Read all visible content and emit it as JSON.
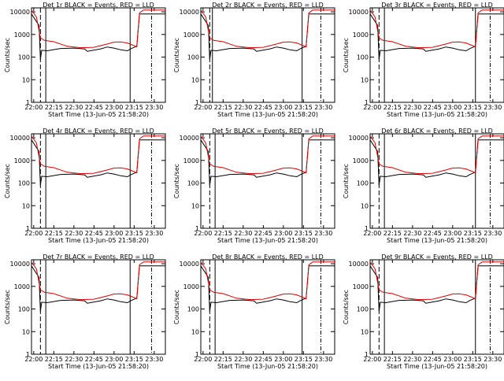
{
  "chart_data": {
    "type": "line",
    "xlabel": "Start Time (13-Jun-05 21:58:20)",
    "ylabel": "Counts/sec",
    "x_ticks": [
      "22:00",
      "22:15",
      "22:30",
      "22:45",
      "23:00",
      "23:15",
      "23:30"
    ],
    "y_ticks": [
      "1",
      "10",
      "100",
      "1000",
      "10000"
    ],
    "xlim": [
      "21:58:20",
      "23:38:20"
    ],
    "ylim": [
      1,
      15000
    ],
    "y_scale": "log",
    "grid": false,
    "panels": [
      {
        "title": "Det 1r BLACK = Events, RED = LLD",
        "markers_solid": [
          "22:09",
          "23:12"
        ],
        "markers_dashdot": [
          "23:28"
        ],
        "markers_dashed": [
          "22:05"
        ]
      },
      {
        "title": "Det 2r BLACK = Events, RED = LLD",
        "markers_solid": [
          "22:07",
          "23:14"
        ],
        "markers_dashdot": [
          "23:28"
        ],
        "markers_dashed": [
          "22:05"
        ]
      },
      {
        "title": "Det 3r BLACK = Events, RED = LLD",
        "markers_solid": [
          "22:09",
          "23:17"
        ],
        "markers_dashdot": [
          "23:28"
        ],
        "markers_dashed": [
          "22:05"
        ]
      },
      {
        "title": "Det 4r BLACK = Events, RED = LLD",
        "markers_solid": [
          "22:09",
          "23:12"
        ],
        "markers_dashdot": [
          "23:28"
        ],
        "markers_dashed": [
          "22:05"
        ]
      },
      {
        "title": "Det 5r BLACK = Events, RED = LLD",
        "markers_solid": [
          "22:09",
          "23:14"
        ],
        "markers_dashdot": [
          "23:28"
        ],
        "markers_dashed": [
          "22:05"
        ]
      },
      {
        "title": "Det 6r BLACK = Events, RED = LLD",
        "markers_solid": [
          "22:09",
          "23:17"
        ],
        "markers_dashdot": [
          "23:28"
        ],
        "markers_dashed": [
          "22:05"
        ]
      },
      {
        "title": "Det 7r BLACK = Events, RED = LLD",
        "markers_solid": [
          "22:09",
          "23:12"
        ],
        "markers_dashdot": [
          "23:28"
        ],
        "markers_dashed": [
          "22:05"
        ]
      },
      {
        "title": "Det 8r BLACK = Events, RED = LLD",
        "markers_solid": [
          "22:09",
          "23:14"
        ],
        "markers_dashdot": [
          "23:28"
        ],
        "markers_dashed": [
          "22:05"
        ]
      },
      {
        "title": "Det 9r BLACK = Events, RED = LLD",
        "markers_solid": [
          "22:09",
          "23:17"
        ],
        "markers_dashdot": [
          "23:28"
        ],
        "markers_dashed": [
          "22:05"
        ]
      }
    ],
    "series": [
      {
        "color": "#000000",
        "x": [
          "21:58:20",
          "22:04",
          "22:05",
          "22:06",
          "22:10",
          "22:20",
          "22:30",
          "22:38",
          "22:40",
          "22:50",
          "22:55",
          "23:00",
          "23:05",
          "23:10",
          "23:13",
          "23:17",
          "23:19",
          "23:22",
          "23:38:20"
        ],
        "y": [
          8000,
          2500,
          80,
          200,
          190,
          240,
          250,
          230,
          180,
          230,
          280,
          250,
          210,
          190,
          240,
          300,
          8000,
          8000,
          8000
        ]
      },
      {
        "color": "#e00000",
        "x": [
          "21:58:20",
          "22:02",
          "22:05",
          "22:08",
          "22:15",
          "22:25",
          "22:35",
          "22:45",
          "22:55",
          "23:00",
          "23:05",
          "23:10",
          "23:15",
          "23:17",
          "23:19",
          "23:22",
          "23:38:20"
        ],
        "y": [
          12000,
          6000,
          700,
          550,
          480,
          300,
          260,
          270,
          380,
          460,
          470,
          420,
          320,
          280,
          9000,
          12000,
          12000
        ]
      }
    ]
  }
}
